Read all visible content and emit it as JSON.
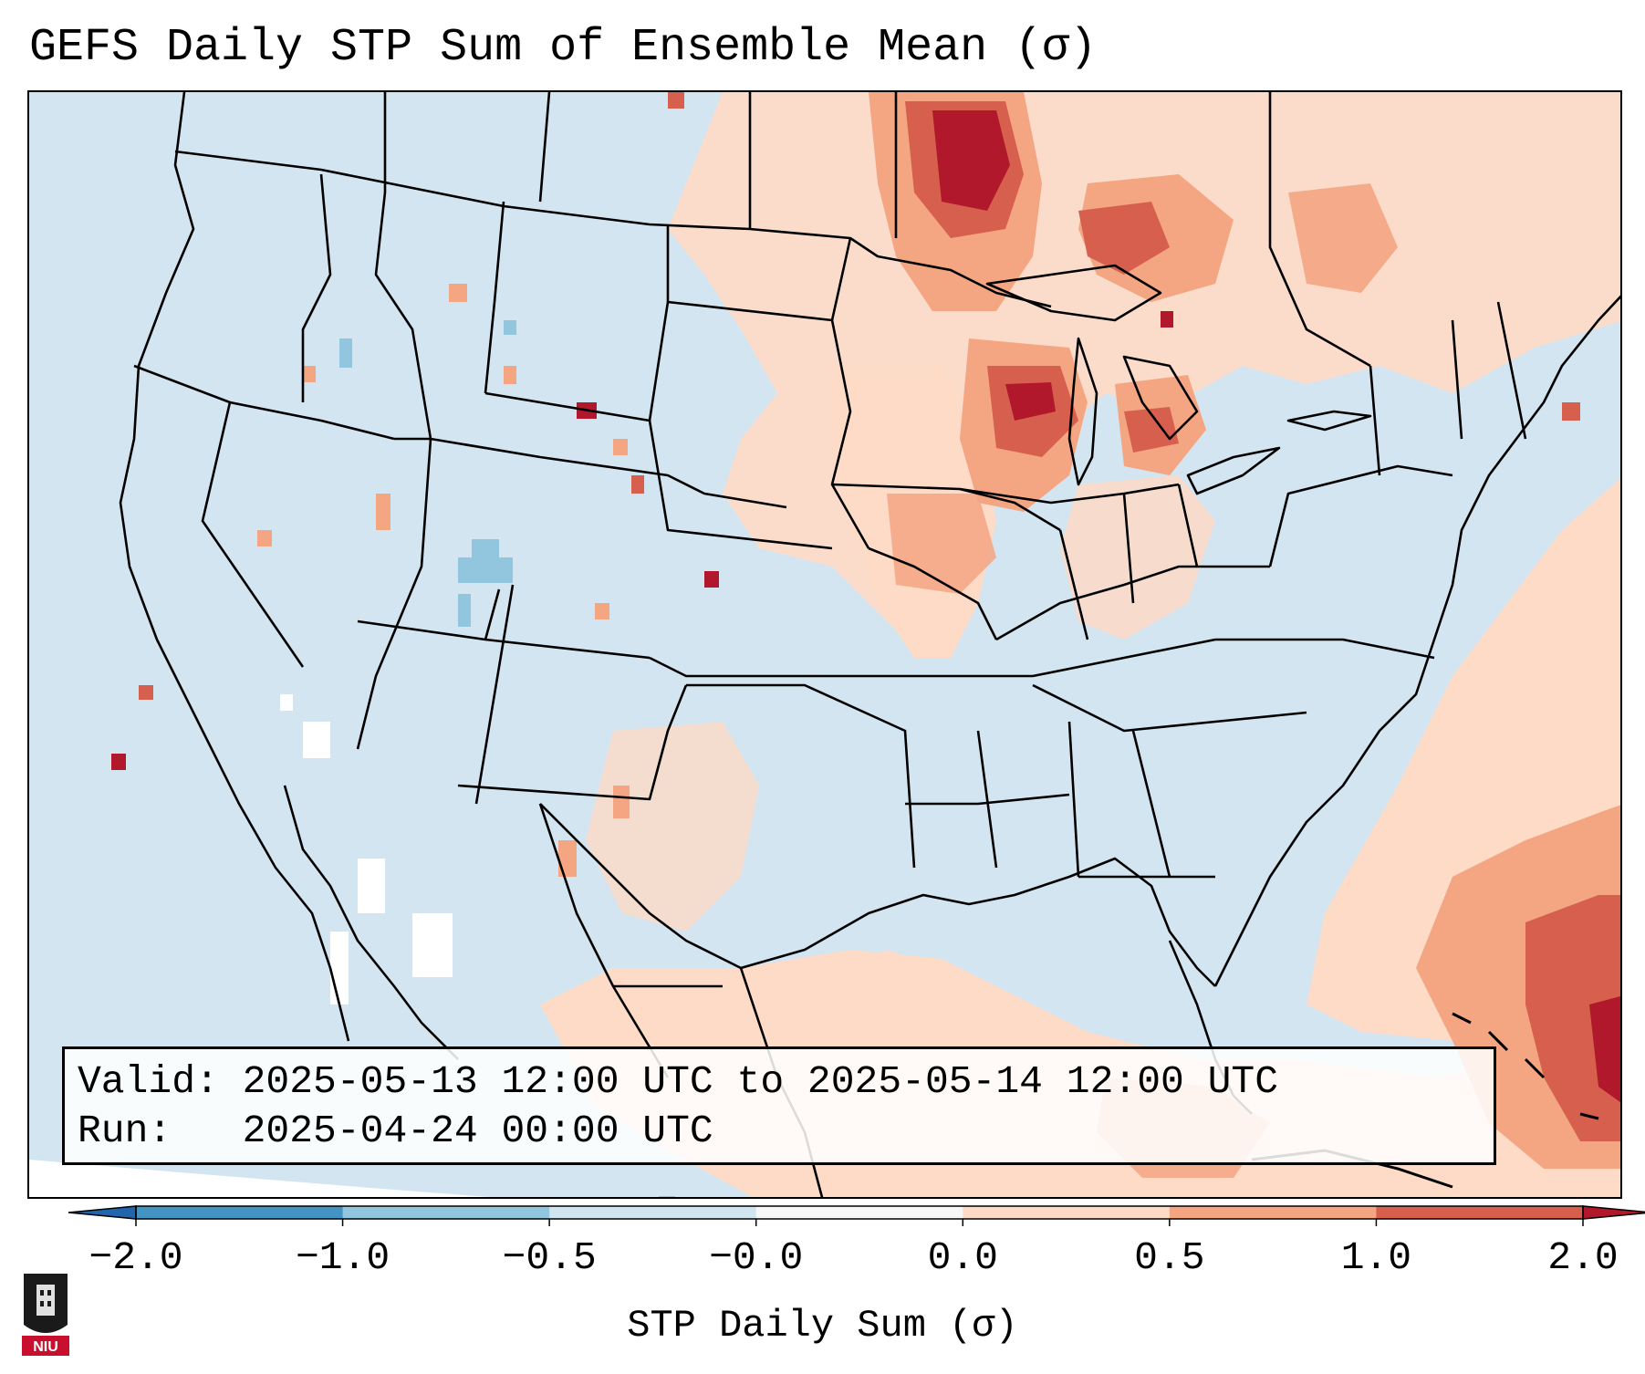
{
  "title": "GEFS Daily STP Sum of Ensemble Mean (σ)",
  "info": {
    "valid_line": "Valid: 2025-05-13 12:00 UTC to 2025-05-14 12:00 UTC",
    "run_line": "Run:   2025-04-24 00:00 UTC"
  },
  "colorbar": {
    "label": "STP Daily Sum (σ)",
    "ticks": [
      "−2.0",
      "−1.0",
      "−0.5",
      "−0.0",
      "0.0",
      "0.5",
      "1.0",
      "2.0"
    ],
    "bins": [
      {
        "range": [
          -2.0,
          -1.0
        ],
        "color": "#4393c3"
      },
      {
        "range": [
          -1.0,
          -0.5
        ],
        "color": "#92c5de"
      },
      {
        "range": [
          -0.5,
          0.0
        ],
        "color": "#d1e5f0"
      },
      {
        "range": [
          0.0,
          0.0
        ],
        "color": "#f7f7f7"
      },
      {
        "range": [
          0.0,
          0.5
        ],
        "color": "#fddbc7"
      },
      {
        "range": [
          0.5,
          1.0
        ],
        "color": "#f4a582"
      },
      {
        "range": [
          1.0,
          2.0
        ],
        "color": "#d6604d"
      }
    ],
    "under_color": "#2166ac",
    "over_color": "#b2182b"
  },
  "logo": {
    "text": "NIU"
  },
  "colors": {
    "background": "#d3e5f1",
    "outside_domain": "#ffffff"
  }
}
